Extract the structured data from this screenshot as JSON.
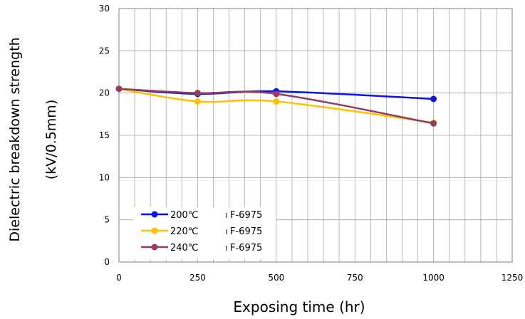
{
  "chart_data": {
    "type": "line",
    "title": "",
    "xlabel": "Exposing time (hr)",
    "ylabel_line1": "Dielectric breakdown strength",
    "ylabel_line2": "(kV/0.5mm)",
    "xlim": [
      0,
      1250
    ],
    "ylim": [
      0,
      30
    ],
    "x_ticks": [
      0,
      250,
      500,
      750,
      1000,
      1250
    ],
    "y_ticks": [
      0,
      5,
      10,
      15,
      20,
      25,
      30
    ],
    "x_minor_step": 50,
    "grid": true,
    "legend_position": "bottom-left",
    "series": [
      {
        "name": "200℃",
        "material": "F-6975",
        "color": "#0a14e6",
        "x": [
          0,
          250,
          500,
          1000
        ],
        "y": [
          20.5,
          19.9,
          20.2,
          19.3
        ]
      },
      {
        "name": "220℃",
        "material": "F-6975",
        "color": "#ffc000",
        "x": [
          0,
          250,
          500,
          1000
        ],
        "y": [
          20.5,
          19.0,
          19.0,
          16.5
        ]
      },
      {
        "name": "240℃",
        "material": "F-6975",
        "color": "#943c62",
        "x": [
          0,
          250,
          500,
          1000
        ],
        "y": [
          20.5,
          20.0,
          19.9,
          16.4
        ]
      }
    ]
  }
}
